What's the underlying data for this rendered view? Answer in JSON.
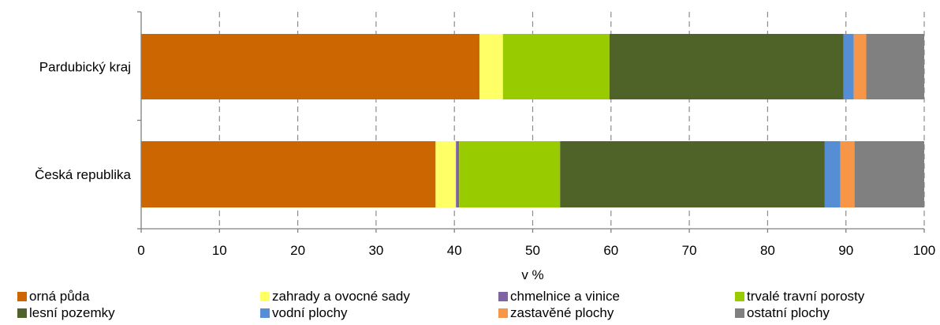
{
  "chart_data": {
    "type": "bar",
    "orientation": "horizontal",
    "stacked": true,
    "title": "",
    "xlabel": "v %",
    "ylabel": "",
    "xlim": [
      0,
      100
    ],
    "x_ticks": [
      "0",
      "10",
      "20",
      "30",
      "40",
      "50",
      "60",
      "70",
      "80",
      "90",
      "100"
    ],
    "grid": "vertical dashed",
    "legend_position": "bottom",
    "categories": [
      "Pardubický kraj",
      "Česká republika"
    ],
    "series": [
      {
        "name": "orná půda",
        "color": "#CC6600",
        "values": [
          43.2,
          37.6
        ]
      },
      {
        "name": "zahrady a ovocné sady",
        "color": "#FFFF66",
        "values": [
          3.0,
          2.6
        ]
      },
      {
        "name": "chmelnice a vinice",
        "color": "#8064A2",
        "values": [
          0.0,
          0.4
        ]
      },
      {
        "name": "trvalé travní porosty",
        "color": "#99CC00",
        "values": [
          13.6,
          12.9
        ]
      },
      {
        "name": "lesní pozemky",
        "color": "#4F6228",
        "values": [
          29.9,
          33.8
        ]
      },
      {
        "name": "vodní plochy",
        "color": "#558ED5",
        "values": [
          1.3,
          2.0
        ]
      },
      {
        "name": "zastavěné plochy",
        "color": "#F79646",
        "values": [
          1.6,
          1.8
        ]
      },
      {
        "name": "ostatní plochy",
        "color": "#808080",
        "values": [
          7.4,
          8.9
        ]
      }
    ]
  }
}
